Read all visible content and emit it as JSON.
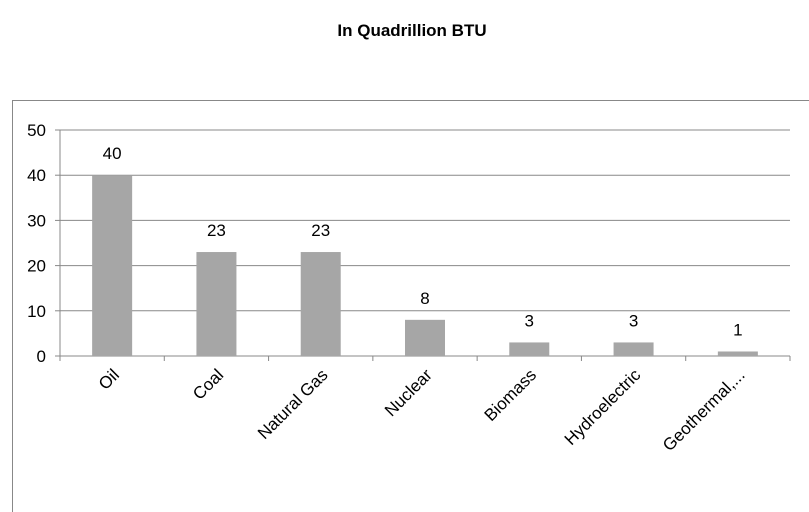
{
  "chart_data": {
    "type": "bar",
    "title": "In Quadrillion BTU",
    "categories": [
      "Oil",
      "Coal",
      "Natural Gas",
      "Nuclear",
      "Biomass",
      "Hydroelectric",
      "Geothermal,..."
    ],
    "values": [
      40,
      23,
      23,
      8,
      3,
      3,
      1
    ],
    "color": "#a6a6a6",
    "ylim": [
      0,
      50
    ],
    "yticks": [
      0,
      10,
      20,
      30,
      40,
      50
    ],
    "grid": true
  }
}
